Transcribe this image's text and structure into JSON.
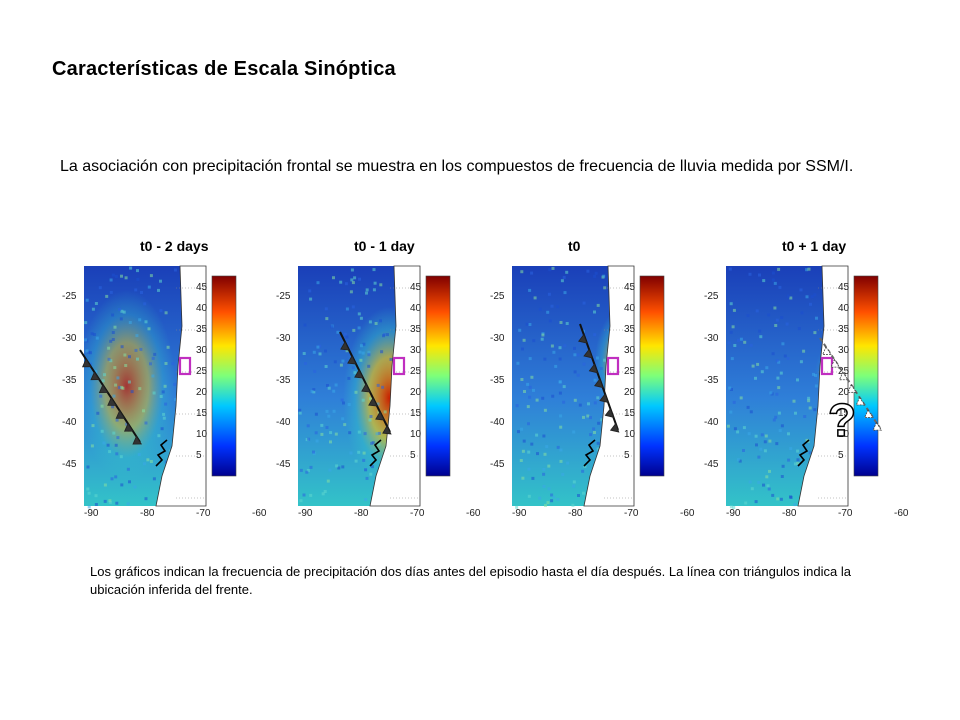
{
  "slide": {
    "title": "Características de Escala Sinóptica",
    "intro": "La asociación con precipitación frontal se muestra en los compuestos de frecuencia de lluvia medida por SSM/I.",
    "caption": "Los gráficos indican la frecuencia de precipitación dos días antes del episodio hasta el día después.  La línea con triángulos indica la ubicación inferida del frente."
  },
  "maps": {
    "lat_ticks": [
      "-25",
      "-30",
      "-35",
      "-40",
      "-45"
    ],
    "lon_ticks": [
      "-90",
      "-80",
      "-70",
      "-60"
    ],
    "colorbar_ticks": [
      "45",
      "40",
      "35",
      "30",
      "25",
      "20",
      "15",
      "10",
      "5"
    ],
    "panels": [
      {
        "title": "t0 - 2 days",
        "front": "solid"
      },
      {
        "title": "t0 - 1 day",
        "front": "solid"
      },
      {
        "title": "t0",
        "front": "solid"
      },
      {
        "title": "t0 + 1 day",
        "front": "dashed",
        "annotation": "?"
      }
    ],
    "colors": {
      "low": "#1a3fb8",
      "mid": "#33c3c8",
      "high": "#c81e00",
      "land": "#ffffff",
      "box": "#c02fc0",
      "front": "#111111"
    }
  }
}
